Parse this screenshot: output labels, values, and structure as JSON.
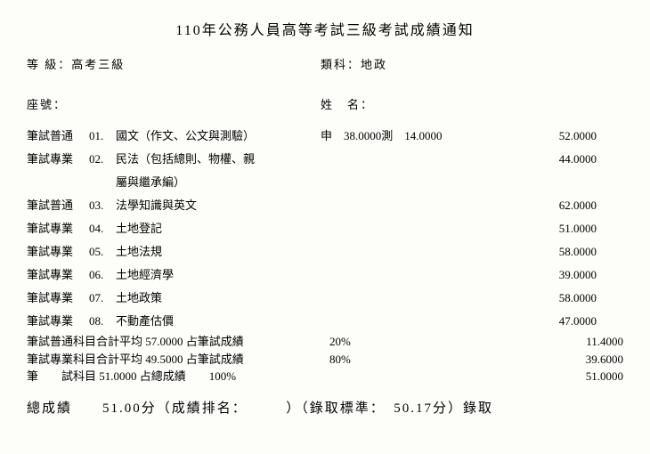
{
  "title": "110年公務人員高等考試三級考試成績通知",
  "grade_label": "等 級：",
  "grade_value": "高考三級",
  "category_label": "類科：",
  "category_value": "地政",
  "seat_label": "座號：",
  "name_label": "姓　名：",
  "subjects": [
    {
      "cat": "筆試普通",
      "num": "01.",
      "name": "國文（作文、公文與測驗）",
      "mid": "申　38.0000測　14.0000",
      "score": "52.0000"
    },
    {
      "cat": "筆試專業",
      "num": "02.",
      "name": "民法（包括總則、物權、親",
      "mid": "",
      "score": "44.0000"
    },
    {
      "cat": "",
      "num": "",
      "name": "屬與繼承編）",
      "mid": "",
      "score": ""
    },
    {
      "cat": "筆試普通",
      "num": "03.",
      "name": "法學知識與英文",
      "mid": "",
      "score": "62.0000"
    },
    {
      "cat": "筆試專業",
      "num": "04.",
      "name": "土地登記",
      "mid": "",
      "score": "51.0000"
    },
    {
      "cat": "筆試專業",
      "num": "05.",
      "name": "土地法規",
      "mid": "",
      "score": "58.0000"
    },
    {
      "cat": "筆試專業",
      "num": "06.",
      "name": "土地經濟學",
      "mid": "",
      "score": "39.0000"
    },
    {
      "cat": "筆試專業",
      "num": "07.",
      "name": "土地政策",
      "mid": "",
      "score": "58.0000"
    },
    {
      "cat": "筆試專業",
      "num": "08.",
      "name": "不動產估價",
      "mid": "",
      "score": "47.0000"
    }
  ],
  "summary": [
    {
      "left": "筆試普通科目合計平均 57.0000 占筆試成績",
      "pct": "20%",
      "score": "11.4000"
    },
    {
      "left": "筆試專業科目合計平均 49.5000 占筆試成績",
      "pct": "80%",
      "score": "39.6000"
    },
    {
      "left": "筆　　試科目 51.0000 占總成績　　100%",
      "pct": "",
      "score": "51.0000"
    }
  ],
  "final": "總成績　　51.00分（成績排名：　　　）（錄取標準：　50.17分）錄取"
}
